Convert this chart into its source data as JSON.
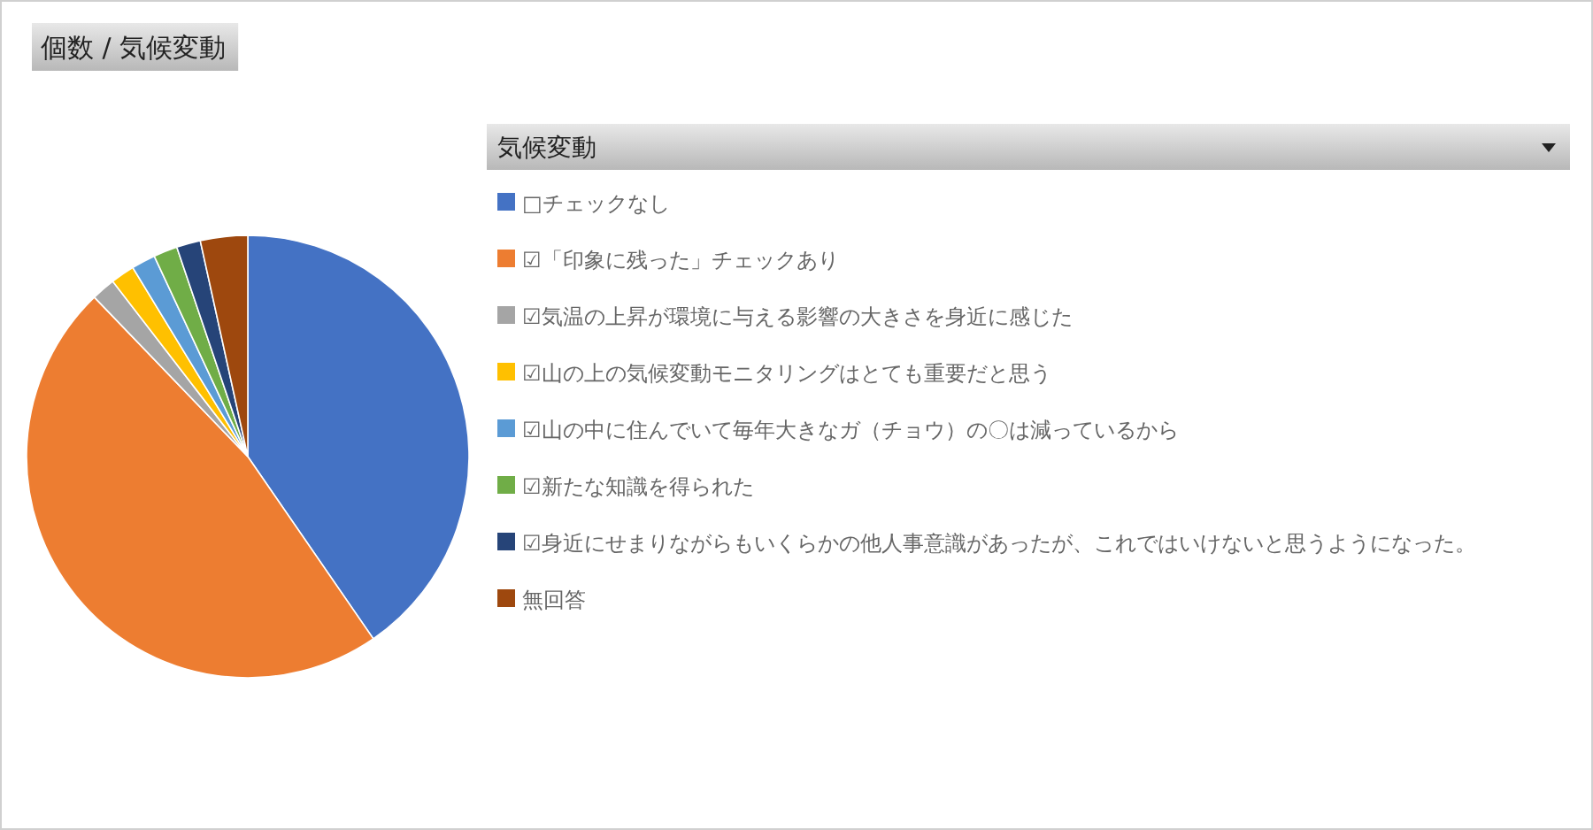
{
  "chart_data": {
    "type": "pie",
    "title": "個数 / 気候変動",
    "legend_title": "気候変動",
    "categories": [
      "□チェックなし",
      "☑「印象に残った」チェックあり",
      "☑気温の上昇が環境に与える影響の大きさを身近に感じた",
      "☑山の上の気候変動モニタリングはとても重要だと思う",
      "☑山の中に住んでいて毎年大きなガ（チョウ）の〇は減っているから",
      "☑新たな知識を得られた",
      "☑身近にせまりながらもいくらかの他人事意識があったが、これではいけないと思うようになった。",
      "無回答"
    ],
    "values": [
      40.4,
      47.4,
      1.75,
      1.75,
      1.75,
      1.75,
      1.75,
      3.45
    ],
    "colors": [
      "#4472c4",
      "#ed7d31",
      "#a5a5a5",
      "#ffc000",
      "#5b9bd5",
      "#70ad47",
      "#264478",
      "#9e480e"
    ],
    "legend": "right"
  }
}
